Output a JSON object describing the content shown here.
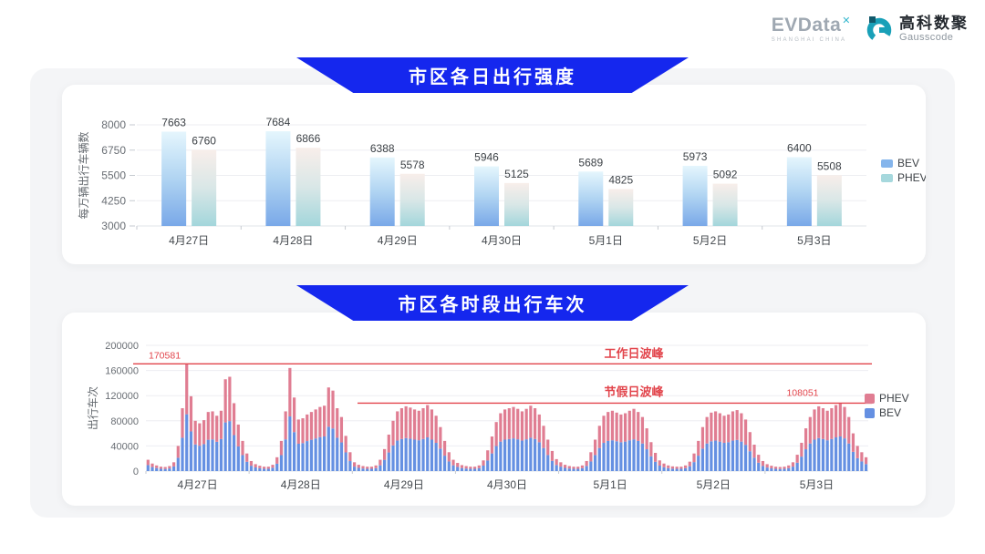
{
  "page": {
    "bg": "#ffffff",
    "panel_bg": "#f4f5f7",
    "card_bg": "#ffffff",
    "banner_color": "#1527ee"
  },
  "header": {
    "evdata": {
      "name": "EVData",
      "superscript": "✕",
      "subtitle": "SHANGHAI CHINA"
    },
    "gausscode": {
      "cn": "高科数聚",
      "en": "Gausscode",
      "mark_color": "#19a0b8",
      "mark_dark": "#11596b"
    }
  },
  "chart_data": [
    {
      "type": "bar",
      "title": "市区各日出行强度",
      "ylabel": "每万辆出行车辆数",
      "ylim": [
        3000,
        8000
      ],
      "yticks": [
        3000,
        4250,
        5500,
        6750,
        8000
      ],
      "grid": true,
      "legend_position": "right",
      "categories": [
        "4月27日",
        "4月28日",
        "4月29日",
        "4月30日",
        "5月1日",
        "5月2日",
        "5月3日"
      ],
      "series": [
        {
          "name": "BEV",
          "values": [
            7663,
            7684,
            6388,
            5946,
            5689,
            5973,
            6400
          ]
        },
        {
          "name": "PHEV",
          "values": [
            6760,
            6866,
            5578,
            5125,
            4825,
            5092,
            5508
          ]
        }
      ],
      "colors": {
        "bev_gradient": [
          "#e5f6fd",
          "#b0d4f2",
          "#79a8e8"
        ],
        "phev_gradient": [
          "#f8eeea",
          "#d9e7e7",
          "#a3d6db"
        ],
        "bev_legend": "#85b5ec",
        "phev_legend": "#a6d8dd"
      }
    },
    {
      "type": "bar",
      "stacked": true,
      "title": "市区各时段出行车次",
      "ylabel": "出行车次",
      "ylim": [
        0,
        200000
      ],
      "yticks": [
        0,
        40000,
        80000,
        120000,
        160000,
        200000
      ],
      "grid": true,
      "legend_position": "right",
      "legend_order": [
        "PHEV",
        "BEV"
      ],
      "hours_per_day": 24,
      "categories": [
        "4月27日",
        "4月28日",
        "4月29日",
        "4月30日",
        "5月1日",
        "5月2日",
        "5月3日"
      ],
      "series": [
        {
          "name": "BEV",
          "color": "#6590e2",
          "values_by_day": [
            [
              9500,
              6400,
              4800,
              3700,
              3400,
              4200,
              7400,
              21200,
              53000,
              90400,
              63100,
              42400,
              40300,
              42900,
              49800,
              50400,
              46600,
              50900,
              77400,
              79500,
              57200,
              39200,
              25400,
              14800
            ],
            [
              8500,
              5800,
              4500,
              3700,
              3700,
              5300,
              11700,
              25400,
              50400,
              86900,
              62000,
              43500,
              44500,
              47700,
              49800,
              51900,
              54100,
              55100,
              70500,
              67800,
              53000,
              45600,
              29700,
              15900
            ],
            [
              7100,
              5100,
              4100,
              3600,
              3600,
              4600,
              9200,
              17900,
              29600,
              40800,
              48500,
              51000,
              52500,
              51500,
              50000,
              49000,
              51000,
              53600,
              50000,
              44900,
              35700,
              24500,
              15300,
              9200
            ],
            [
              6600,
              4800,
              4100,
              3600,
              3600,
              4600,
              8700,
              16800,
              28100,
              39800,
              46900,
              50000,
              51000,
              52000,
              50500,
              48500,
              50500,
              53000,
              51000,
              45900,
              36700,
              25500,
              16300,
              9700
            ],
            [
              7100,
              5100,
              4100,
              3600,
              3600,
              4600,
              8200,
              15300,
              25500,
              36700,
              44900,
              47900,
              49000,
              47400,
              45900,
              46900,
              49000,
              50500,
              47900,
              43900,
              34700,
              23500,
              14800,
              8700
            ],
            [
              6100,
              4600,
              3800,
              3600,
              3600,
              4600,
              7700,
              14300,
              24500,
              35700,
              43900,
              47400,
              48500,
              46900,
              44900,
              45900,
              48500,
              49500,
              46900,
              41800,
              31600,
              21400,
              13300,
              8200
            ],
            [
              5600,
              4300,
              3600,
              3300,
              3600,
              4600,
              7100,
              13300,
              23000,
              34700,
              43900,
              50000,
              52500,
              51000,
              49000,
              51000,
              53600,
              55100,
              52000,
              43900,
              30600,
              20400,
              15300,
              11200
            ]
          ]
        },
        {
          "name": "PHEV",
          "color": "#e07d92",
          "values_by_day": [
            [
              8500,
              5600,
              4200,
              3300,
              3100,
              3800,
              6600,
              18800,
              47000,
              80181,
              55900,
              37600,
              35700,
              38100,
              44200,
              44600,
              41400,
              45100,
              68600,
              70500,
              50800,
              34800,
              22600,
              13200
            ],
            [
              7500,
              5200,
              4000,
              3300,
              3300,
              4700,
              10300,
              22600,
              44600,
              77100,
              55000,
              38500,
              39500,
              42300,
              44200,
              46100,
              47900,
              48900,
              62500,
              60200,
              47000,
              40400,
              26300,
              14100
            ],
            [
              6900,
              4900,
              3900,
              3400,
              3400,
              4400,
              8800,
              17100,
              28400,
              39200,
              46500,
              49000,
              50500,
              49500,
              48000,
              47000,
              49000,
              51400,
              48000,
              43100,
              34300,
              23500,
              14700,
              8800
            ],
            [
              6400,
              4700,
              3900,
              3400,
              3400,
              4400,
              8300,
              16200,
              26900,
              38200,
              45100,
              48000,
              49000,
              50000,
              48500,
              46500,
              48500,
              51000,
              49000,
              44100,
              35300,
              24500,
              15700,
              9300
            ],
            [
              6900,
              4900,
              3900,
              3400,
              3400,
              4400,
              7800,
              14700,
              24500,
              35300,
              43100,
              46100,
              47000,
              45600,
              44100,
              45100,
              47000,
              48500,
              46100,
              42100,
              33300,
              22500,
              14200,
              8300
            ],
            [
              5900,
              4400,
              3700,
              3400,
              3400,
              4400,
              7300,
              13700,
              23500,
              34300,
              42100,
              45600,
              46500,
              45100,
              43100,
              44100,
              46500,
              47500,
              45100,
              40200,
              30400,
              20600,
              12700,
              7800
            ],
            [
              5400,
              4200,
              3400,
              3200,
              3400,
              4400,
              6900,
              12700,
              22000,
              33300,
              42100,
              48000,
              50500,
              49000,
              47000,
              49000,
              51400,
              52951,
              50000,
              42100,
              29400,
              19600,
              14700,
              10800
            ]
          ]
        }
      ],
      "annotations": [
        {
          "name": "工作日波峰",
          "value": 170581,
          "value_label": "170581",
          "color": "#e2444b",
          "span": "full"
        },
        {
          "name": "节假日波峰",
          "value": 108051,
          "value_label": "108051",
          "color": "#e2444b",
          "span": "partial"
        }
      ]
    }
  ]
}
